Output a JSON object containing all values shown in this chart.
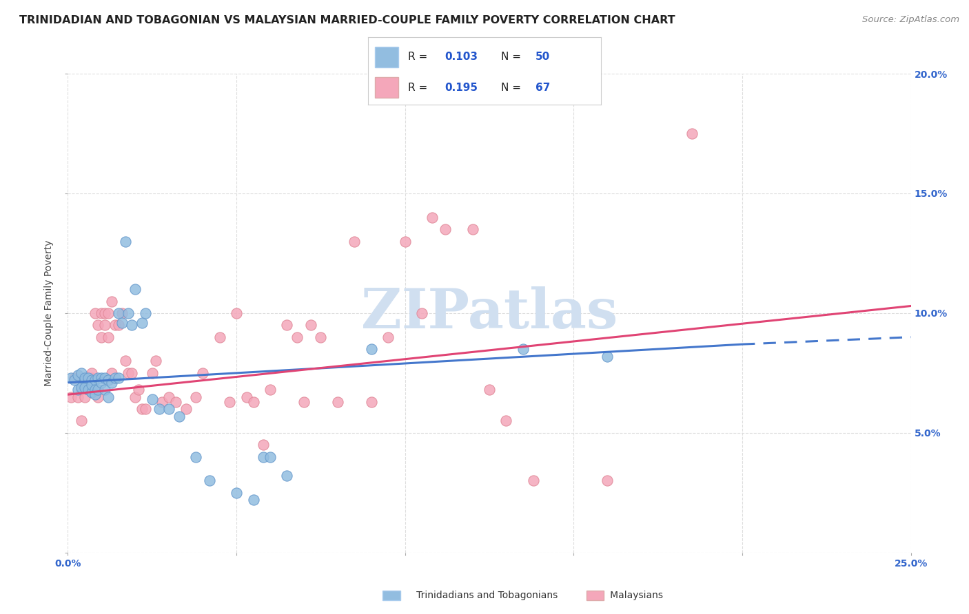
{
  "title": "TRINIDADIAN AND TOBAGONIAN VS MALAYSIAN MARRIED-COUPLE FAMILY POVERTY CORRELATION CHART",
  "source": "Source: ZipAtlas.com",
  "ylabel": "Married-Couple Family Poverty",
  "xlim": [
    0,
    0.25
  ],
  "ylim": [
    0,
    0.2
  ],
  "trinidadian_color": "#92bde0",
  "trinidadian_edge": "#6699cc",
  "malaysian_color": "#f4a7ba",
  "malaysian_edge": "#e08898",
  "trend_blue": "#4477cc",
  "trend_pink": "#e04474",
  "background_color": "#ffffff",
  "grid_color": "#dddddd",
  "watermark_color": "#d0dff0",
  "title_fontsize": 11.5,
  "source_fontsize": 9.5,
  "axis_label_fontsize": 10,
  "tick_fontsize": 10,
  "blue_x": [
    0.001,
    0.002,
    0.003,
    0.003,
    0.004,
    0.004,
    0.005,
    0.005,
    0.005,
    0.006,
    0.006,
    0.007,
    0.007,
    0.007,
    0.008,
    0.008,
    0.008,
    0.009,
    0.009,
    0.01,
    0.01,
    0.011,
    0.011,
    0.012,
    0.012,
    0.013,
    0.014,
    0.015,
    0.015,
    0.016,
    0.017,
    0.018,
    0.019,
    0.02,
    0.022,
    0.023,
    0.025,
    0.027,
    0.03,
    0.033,
    0.038,
    0.042,
    0.05,
    0.055,
    0.058,
    0.06,
    0.065,
    0.09,
    0.135,
    0.16
  ],
  "blue_y": [
    0.073,
    0.072,
    0.074,
    0.068,
    0.075,
    0.069,
    0.072,
    0.069,
    0.073,
    0.073,
    0.068,
    0.072,
    0.067,
    0.07,
    0.072,
    0.068,
    0.066,
    0.073,
    0.068,
    0.073,
    0.071,
    0.073,
    0.068,
    0.072,
    0.065,
    0.071,
    0.073,
    0.1,
    0.073,
    0.096,
    0.13,
    0.1,
    0.095,
    0.11,
    0.096,
    0.1,
    0.064,
    0.06,
    0.06,
    0.057,
    0.04,
    0.03,
    0.025,
    0.022,
    0.04,
    0.04,
    0.032,
    0.085,
    0.085,
    0.082
  ],
  "pink_x": [
    0.001,
    0.002,
    0.003,
    0.004,
    0.004,
    0.005,
    0.005,
    0.006,
    0.006,
    0.007,
    0.007,
    0.008,
    0.008,
    0.009,
    0.009,
    0.01,
    0.01,
    0.011,
    0.011,
    0.012,
    0.012,
    0.013,
    0.013,
    0.014,
    0.015,
    0.016,
    0.017,
    0.018,
    0.019,
    0.02,
    0.021,
    0.022,
    0.023,
    0.025,
    0.026,
    0.028,
    0.03,
    0.032,
    0.035,
    0.038,
    0.04,
    0.045,
    0.048,
    0.05,
    0.053,
    0.055,
    0.058,
    0.06,
    0.065,
    0.068,
    0.07,
    0.072,
    0.075,
    0.08,
    0.085,
    0.09,
    0.095,
    0.1,
    0.105,
    0.108,
    0.112,
    0.12,
    0.125,
    0.13,
    0.138,
    0.16,
    0.185
  ],
  "pink_y": [
    0.065,
    0.073,
    0.065,
    0.055,
    0.068,
    0.072,
    0.065,
    0.068,
    0.073,
    0.073,
    0.075,
    0.068,
    0.1,
    0.065,
    0.095,
    0.09,
    0.1,
    0.095,
    0.1,
    0.09,
    0.1,
    0.105,
    0.075,
    0.095,
    0.095,
    0.1,
    0.08,
    0.075,
    0.075,
    0.065,
    0.068,
    0.06,
    0.06,
    0.075,
    0.08,
    0.063,
    0.065,
    0.063,
    0.06,
    0.065,
    0.075,
    0.09,
    0.063,
    0.1,
    0.065,
    0.063,
    0.045,
    0.068,
    0.095,
    0.09,
    0.063,
    0.095,
    0.09,
    0.063,
    0.13,
    0.063,
    0.09,
    0.13,
    0.1,
    0.14,
    0.135,
    0.135,
    0.068,
    0.055,
    0.03,
    0.03,
    0.175
  ]
}
